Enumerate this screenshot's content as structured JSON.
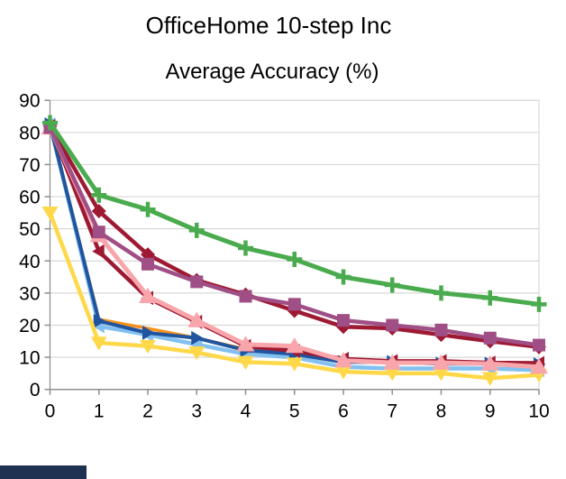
{
  "window": {
    "title": "OfficeHome 10-step Inc",
    "subtitle": "Average Accuracy (%)"
  },
  "chart_data": {
    "type": "line",
    "title": "OfficeHome 10-step Inc",
    "subtitle": "Average Accuracy (%)",
    "xlabel": "",
    "ylabel": "",
    "xlim": [
      0,
      10
    ],
    "ylim": [
      0,
      90
    ],
    "x_ticks": [
      0,
      1,
      2,
      3,
      4,
      5,
      6,
      7,
      8,
      9,
      10
    ],
    "y_ticks": [
      0,
      10,
      20,
      30,
      40,
      50,
      60,
      70,
      80,
      90
    ],
    "grid": "horizontal",
    "legend": "none",
    "x": [
      0,
      1,
      2,
      3,
      4,
      5,
      6,
      7,
      8,
      9,
      10
    ],
    "series": [
      {
        "name": "lightblue-left-triangle",
        "color": "#82c0f0",
        "marker": "tri_left",
        "marker_size": 7.5,
        "line_width": 4.5,
        "values": [
          82.5,
          19.7,
          17.0,
          14.0,
          11.0,
          10.0,
          7.0,
          6.5,
          6.5,
          6.5,
          6.0
        ]
      },
      {
        "name": "orange-line",
        "color": "#f6921e",
        "marker": "none",
        "marker_size": 0,
        "line_width": 3.5,
        "values": [
          82.0,
          21.8,
          19.0,
          16.0,
          12.5,
          11.0,
          8.8,
          8.3,
          8.2,
          8.2,
          7.8
        ]
      },
      {
        "name": "darkblue-right-triangle",
        "color": "#20549e",
        "marker": "tri_right",
        "marker_size": 7.5,
        "line_width": 4,
        "values": [
          82.5,
          21.3,
          17.6,
          16.0,
          12.2,
          11.0,
          8.5,
          8.5,
          8.0,
          8.0,
          7.8
        ]
      },
      {
        "name": "yellow-down-triangle",
        "color": "#ffd84a",
        "marker": "tri_down",
        "marker_size": 8.5,
        "line_width": 4.5,
        "values": [
          55.0,
          14.5,
          13.5,
          11.5,
          8.5,
          8.0,
          5.5,
          5.0,
          5.0,
          3.5,
          4.5
        ]
      },
      {
        "name": "darkred-left-triangle",
        "color": "#9e1a33",
        "marker": "tri_left",
        "marker_size": 7.5,
        "line_width": 4.5,
        "values": [
          82.0,
          43.0,
          28.5,
          21.0,
          13.5,
          12.0,
          9.5,
          8.8,
          8.8,
          8.3,
          8.2
        ]
      },
      {
        "name": "pink-up-triangle",
        "color": "#f8a5ab",
        "marker": "tri_up",
        "marker_size": 9.5,
        "line_width": 5,
        "values": [
          81.5,
          48.0,
          29.0,
          21.5,
          14.0,
          13.5,
          9.0,
          8.3,
          8.3,
          8.0,
          7.0
        ]
      },
      {
        "name": "darkred-diamond",
        "color": "#9e1a33",
        "marker": "diamond",
        "marker_size": 8,
        "line_width": 4.5,
        "values": [
          82.0,
          55.5,
          42.0,
          34.0,
          29.5,
          24.5,
          19.5,
          19.0,
          17.0,
          15.0,
          13.2
        ]
      },
      {
        "name": "purple-square",
        "color": "#a04f86",
        "marker": "square",
        "marker_size": 7,
        "line_width": 4.5,
        "values": [
          81.5,
          49.0,
          39.0,
          33.5,
          29.0,
          26.5,
          21.5,
          20.0,
          18.5,
          16.0,
          13.8
        ]
      },
      {
        "name": "green-plus",
        "color": "#4aab4e",
        "marker": "plus",
        "marker_size": 8.5,
        "line_width": 5,
        "values": [
          83.0,
          60.5,
          56.0,
          49.5,
          44.0,
          40.5,
          35.0,
          32.5,
          30.0,
          28.5,
          26.5
        ]
      }
    ],
    "colors": {
      "gridline": "#d9d9d9",
      "axis": "#8f8f8f",
      "background": "#ffffff",
      "bottom_bar": "#1f3251"
    }
  }
}
